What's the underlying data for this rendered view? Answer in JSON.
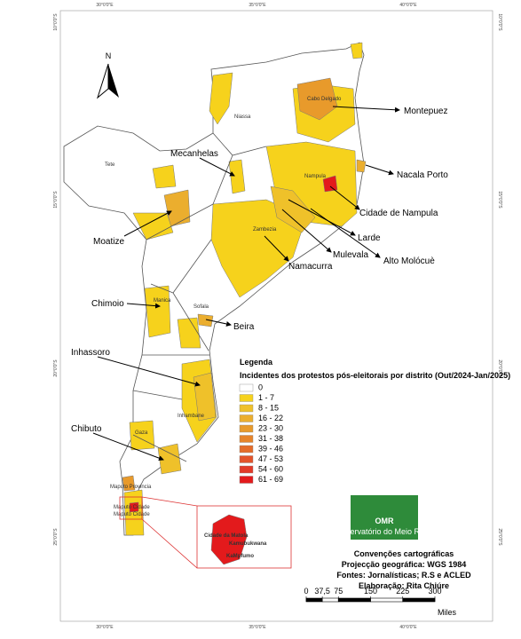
{
  "map": {
    "north": "N",
    "top_ticks": [
      "30°0'0\"E",
      "35°0'0\"E",
      "40°0'0\"E"
    ],
    "bottom_ticks": [
      "30°0'0\"E",
      "35°0'0\"E",
      "40°0'0\"E"
    ],
    "left_ticks": [
      "10°0'0\"S",
      "15°0'0\"S",
      "20°0'0\"S",
      "25°0'0\"S"
    ],
    "right_ticks": [
      "10°0'0\"S",
      "15°0'0\"S",
      "20°0'0\"S",
      "25°0'0\"S"
    ],
    "provinces": [
      "Niassa",
      "Cabo Delgado",
      "Nampula",
      "Tete",
      "Zambezia",
      "Manica",
      "Sofala",
      "Inhambane",
      "Gaza",
      "Maputo Provincia",
      "Maputo Cidade",
      "Maputo Cidade"
    ],
    "callouts": [
      "Montepuez",
      "Mecanhelas",
      "Nacala Porto",
      "Cidade de Nampula",
      "Moatize",
      "Larde",
      "Mulevala",
      "Alto Molócuè",
      "Namacurra",
      "Chimoio",
      "Beira",
      "Inhassoro",
      "Chibuto"
    ],
    "inset_labels": [
      "Cidade da Matola",
      "Kamubukwana",
      "KaMpfumo"
    ]
  },
  "legend": {
    "title": "Legenda",
    "subtitle": "Incidentes dos protestos pós-eleitorais por distrito (Out/2024-Jan/2025)",
    "classes": [
      {
        "label": "0",
        "color": "#ffffff"
      },
      {
        "label": "1 - 7",
        "color": "#f6d21c"
      },
      {
        "label": "8 - 15",
        "color": "#efc12a"
      },
      {
        "label": "16 - 22",
        "color": "#ebae2e"
      },
      {
        "label": "23 - 30",
        "color": "#e89a2b"
      },
      {
        "label": "31 - 38",
        "color": "#e6842a"
      },
      {
        "label": "39 - 46",
        "color": "#e46c2a"
      },
      {
        "label": "47 - 53",
        "color": "#e3532a"
      },
      {
        "label": "54 - 60",
        "color": "#e23a28"
      },
      {
        "label": "61 - 69",
        "color": "#e31a1c"
      }
    ]
  },
  "logo": {
    "name": "OMR",
    "subtitle": "Observatório do Meio Rural"
  },
  "credits": [
    "Convenções cartográficas",
    "Projecção geográfica: WGS 1984",
    "Fontes: Jornalísticas; R.S e ACLED",
    "Elaboração: Rita Chiúre"
  ],
  "scale": {
    "ticks": [
      0,
      {
        "value": 37.5,
        "label": "37,5"
      },
      75,
      150,
      225,
      300
    ],
    "lim": [
      0,
      300
    ],
    "unit": "Miles"
  }
}
